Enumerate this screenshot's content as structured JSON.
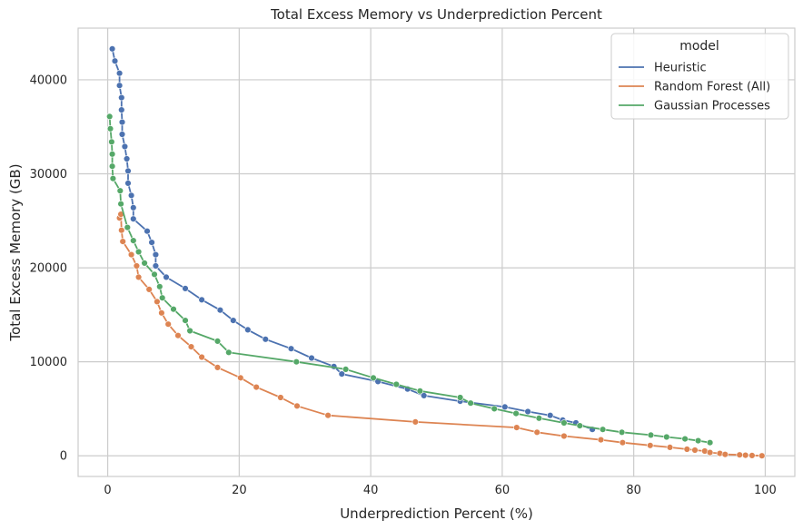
{
  "chart_data": {
    "type": "line",
    "title": "Total Excess Memory vs Underprediction Percent",
    "xlabel": "Underprediction Percent (%)",
    "ylabel": "Total Excess Memory (GB)",
    "xlim": [
      -4.5,
      104.5
    ],
    "ylim": [
      -2200,
      45500
    ],
    "x_ticks": [
      0,
      20,
      40,
      60,
      80,
      100
    ],
    "y_ticks": [
      0,
      10000,
      20000,
      30000,
      40000
    ],
    "grid": true,
    "legend": {
      "title": "model",
      "placement": "top-right"
    },
    "series": [
      {
        "name": "Heuristic",
        "color": "#4c72b0",
        "points": [
          [
            0.7,
            43300
          ],
          [
            1.1,
            42000
          ],
          [
            1.8,
            40700
          ],
          [
            1.8,
            39400
          ],
          [
            2.1,
            38100
          ],
          [
            2.1,
            36800
          ],
          [
            2.2,
            35500
          ],
          [
            2.2,
            34200
          ],
          [
            2.6,
            32900
          ],
          [
            2.9,
            31600
          ],
          [
            3.1,
            30300
          ],
          [
            3.1,
            29000
          ],
          [
            3.6,
            27700
          ],
          [
            3.9,
            26400
          ],
          [
            3.9,
            25200
          ],
          [
            6.0,
            23900
          ],
          [
            6.7,
            22700
          ],
          [
            7.3,
            21400
          ],
          [
            7.3,
            20200
          ],
          [
            8.9,
            19000
          ],
          [
            11.8,
            17800
          ],
          [
            14.3,
            16600
          ],
          [
            17.1,
            15500
          ],
          [
            19.1,
            14400
          ],
          [
            21.3,
            13400
          ],
          [
            24.0,
            12400
          ],
          [
            27.9,
            11400
          ],
          [
            31.0,
            10400
          ],
          [
            34.4,
            9500
          ],
          [
            35.6,
            8700
          ],
          [
            41.1,
            7900
          ],
          [
            45.6,
            7100
          ],
          [
            48.1,
            6400
          ],
          [
            53.6,
            5800
          ],
          [
            60.4,
            5200
          ],
          [
            63.9,
            4700
          ],
          [
            67.3,
            4300
          ],
          [
            69.2,
            3800
          ],
          [
            71.2,
            3500
          ],
          [
            73.7,
            2800
          ]
        ]
      },
      {
        "name": "Random Forest (All)",
        "color": "#dd8452",
        "points": [
          [
            1.8,
            25300
          ],
          [
            2.0,
            25700
          ],
          [
            2.1,
            24000
          ],
          [
            2.3,
            22800
          ],
          [
            3.6,
            21400
          ],
          [
            4.4,
            20200
          ],
          [
            4.7,
            19000
          ],
          [
            6.3,
            17700
          ],
          [
            7.5,
            16400
          ],
          [
            8.2,
            15200
          ],
          [
            9.2,
            14000
          ],
          [
            10.7,
            12800
          ],
          [
            12.7,
            11600
          ],
          [
            14.3,
            10500
          ],
          [
            16.7,
            9400
          ],
          [
            20.2,
            8300
          ],
          [
            22.6,
            7300
          ],
          [
            26.3,
            6200
          ],
          [
            28.8,
            5300
          ],
          [
            33.5,
            4300
          ],
          [
            46.8,
            3600
          ],
          [
            62.2,
            3000
          ],
          [
            65.3,
            2500
          ],
          [
            69.4,
            2100
          ],
          [
            75.0,
            1700
          ],
          [
            78.3,
            1400
          ],
          [
            82.5,
            1100
          ],
          [
            85.5,
            900
          ],
          [
            88.1,
            700
          ],
          [
            89.3,
            600
          ],
          [
            90.8,
            500
          ],
          [
            91.6,
            350
          ],
          [
            93.1,
            250
          ],
          [
            93.9,
            150
          ],
          [
            96.1,
            100
          ],
          [
            97.0,
            60
          ],
          [
            98.0,
            30
          ],
          [
            99.5,
            0
          ]
        ]
      },
      {
        "name": "Gaussian Processes",
        "color": "#55a868",
        "points": [
          [
            0.3,
            36100
          ],
          [
            0.4,
            34800
          ],
          [
            0.6,
            33400
          ],
          [
            0.7,
            32100
          ],
          [
            0.7,
            30800
          ],
          [
            0.8,
            29500
          ],
          [
            1.9,
            28200
          ],
          [
            2.0,
            26800
          ],
          [
            3.0,
            24300
          ],
          [
            3.9,
            22900
          ],
          [
            4.7,
            21700
          ],
          [
            5.6,
            20500
          ],
          [
            7.1,
            19300
          ],
          [
            7.9,
            18000
          ],
          [
            8.3,
            16800
          ],
          [
            10.0,
            15600
          ],
          [
            11.8,
            14400
          ],
          [
            12.5,
            13300
          ],
          [
            16.7,
            12200
          ],
          [
            18.4,
            11000
          ],
          [
            28.7,
            10000
          ],
          [
            36.2,
            9200
          ],
          [
            40.4,
            8300
          ],
          [
            43.9,
            7600
          ],
          [
            47.5,
            6900
          ],
          [
            53.6,
            6200
          ],
          [
            55.2,
            5600
          ],
          [
            58.8,
            5000
          ],
          [
            62.1,
            4500
          ],
          [
            65.6,
            4000
          ],
          [
            69.4,
            3500
          ],
          [
            71.8,
            3200
          ],
          [
            75.3,
            2800
          ],
          [
            78.2,
            2500
          ],
          [
            82.6,
            2200
          ],
          [
            85.0,
            2000
          ],
          [
            87.8,
            1800
          ],
          [
            89.8,
            1600
          ],
          [
            91.6,
            1400
          ]
        ]
      }
    ]
  }
}
